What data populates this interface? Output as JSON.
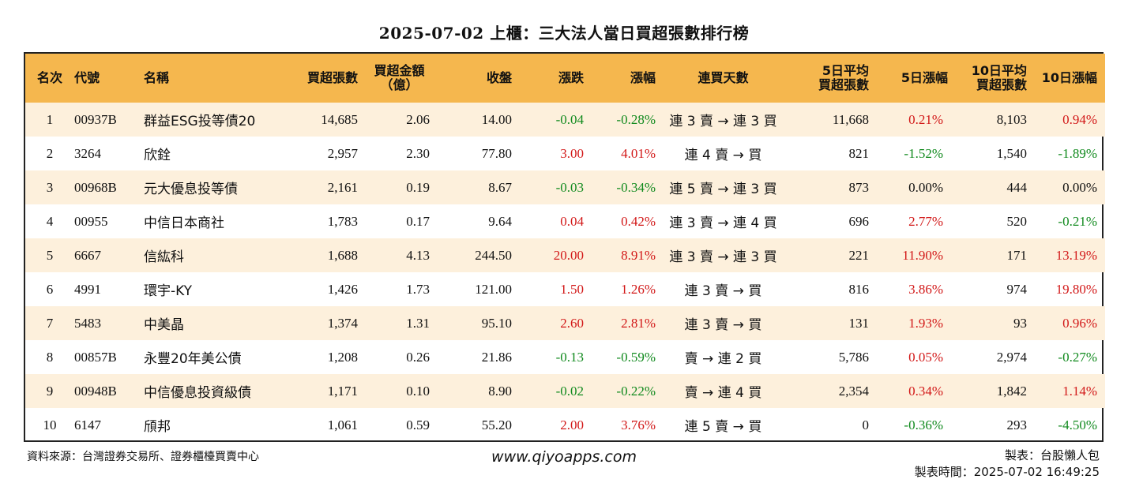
{
  "title": "2025-07-02 上櫃：三大法人當日買超張數排行榜",
  "headers": {
    "rank": "名次",
    "code": "代號",
    "name": "名稱",
    "buy_lots": "買超張數",
    "buy_amount_line1": "買超金額",
    "buy_amount_line2": "（億）",
    "close": "收盤",
    "change": "漲跌",
    "change_pct": "漲幅",
    "streak": "連買天數",
    "avg5_line1": "5日平均",
    "avg5_line2": "買超張數",
    "pct5": "5日漲幅",
    "avg10_line1": "10日平均",
    "avg10_line2": "買超張數",
    "pct10": "10日漲幅"
  },
  "colors": {
    "header_bg": "#f5b74e",
    "stripe_bg": "#fdf0dc",
    "up": "#d21818",
    "down": "#118a1e"
  },
  "rows": [
    {
      "rank": "1",
      "code": "00937B",
      "name": "群益ESG投等債20",
      "buy_lots": "14,685",
      "buy_amount": "2.06",
      "close": "14.00",
      "change": "-0.04",
      "change_pct": "-0.28%",
      "streak": "連 3 賣 → 連 3 買",
      "avg5": "11,668",
      "pct5": "0.21%",
      "avg10": "8,103",
      "pct10": "0.94%",
      "change_color": "green",
      "pct5_color": "red",
      "pct10_color": "red"
    },
    {
      "rank": "2",
      "code": "3264",
      "name": "欣銓",
      "buy_lots": "2,957",
      "buy_amount": "2.30",
      "close": "77.80",
      "change": "3.00",
      "change_pct": "4.01%",
      "streak": "連 4 賣 → 買",
      "avg5": "821",
      "pct5": "-1.52%",
      "avg10": "1,540",
      "pct10": "-1.89%",
      "change_color": "red",
      "pct5_color": "green",
      "pct10_color": "green"
    },
    {
      "rank": "3",
      "code": "00968B",
      "name": "元大優息投等債",
      "buy_lots": "2,161",
      "buy_amount": "0.19",
      "close": "8.67",
      "change": "-0.03",
      "change_pct": "-0.34%",
      "streak": "連 5 賣 → 連 3 買",
      "avg5": "873",
      "pct5": "0.00%",
      "avg10": "444",
      "pct10": "0.00%",
      "change_color": "green",
      "pct5_color": "black",
      "pct10_color": "black"
    },
    {
      "rank": "4",
      "code": "00955",
      "name": "中信日本商社",
      "buy_lots": "1,783",
      "buy_amount": "0.17",
      "close": "9.64",
      "change": "0.04",
      "change_pct": "0.42%",
      "streak": "連 3 賣 → 連 4 買",
      "avg5": "696",
      "pct5": "2.77%",
      "avg10": "520",
      "pct10": "-0.21%",
      "change_color": "red",
      "pct5_color": "red",
      "pct10_color": "green"
    },
    {
      "rank": "5",
      "code": "6667",
      "name": "信紘科",
      "buy_lots": "1,688",
      "buy_amount": "4.13",
      "close": "244.50",
      "change": "20.00",
      "change_pct": "8.91%",
      "streak": "連 3 賣 → 連 3 買",
      "avg5": "221",
      "pct5": "11.90%",
      "avg10": "171",
      "pct10": "13.19%",
      "change_color": "red",
      "pct5_color": "red",
      "pct10_color": "red"
    },
    {
      "rank": "6",
      "code": "4991",
      "name": "環宇-KY",
      "buy_lots": "1,426",
      "buy_amount": "1.73",
      "close": "121.00",
      "change": "1.50",
      "change_pct": "1.26%",
      "streak": "連 3 賣 → 買",
      "avg5": "816",
      "pct5": "3.86%",
      "avg10": "974",
      "pct10": "19.80%",
      "change_color": "red",
      "pct5_color": "red",
      "pct10_color": "red"
    },
    {
      "rank": "7",
      "code": "5483",
      "name": "中美晶",
      "buy_lots": "1,374",
      "buy_amount": "1.31",
      "close": "95.10",
      "change": "2.60",
      "change_pct": "2.81%",
      "streak": "連 3 賣 → 買",
      "avg5": "131",
      "pct5": "1.93%",
      "avg10": "93",
      "pct10": "0.96%",
      "change_color": "red",
      "pct5_color": "red",
      "pct10_color": "red"
    },
    {
      "rank": "8",
      "code": "00857B",
      "name": "永豐20年美公債",
      "buy_lots": "1,208",
      "buy_amount": "0.26",
      "close": "21.86",
      "change": "-0.13",
      "change_pct": "-0.59%",
      "streak": "賣 → 連 2 買",
      "avg5": "5,786",
      "pct5": "0.05%",
      "avg10": "2,974",
      "pct10": "-0.27%",
      "change_color": "green",
      "pct5_color": "red",
      "pct10_color": "green"
    },
    {
      "rank": "9",
      "code": "00948B",
      "name": "中信優息投資級債",
      "buy_lots": "1,171",
      "buy_amount": "0.10",
      "close": "8.90",
      "change": "-0.02",
      "change_pct": "-0.22%",
      "streak": "賣 → 連 4 買",
      "avg5": "2,354",
      "pct5": "0.34%",
      "avg10": "1,842",
      "pct10": "1.14%",
      "change_color": "green",
      "pct5_color": "red",
      "pct10_color": "red"
    },
    {
      "rank": "10",
      "code": "6147",
      "name": "頎邦",
      "buy_lots": "1,061",
      "buy_amount": "0.59",
      "close": "55.20",
      "change": "2.00",
      "change_pct": "3.76%",
      "streak": "連 5 賣 → 買",
      "avg5": "0",
      "pct5": "-0.36%",
      "avg10": "293",
      "pct10": "-4.50%",
      "change_color": "red",
      "pct5_color": "green",
      "pct10_color": "green"
    }
  ],
  "footer": {
    "source": "資料來源：台灣證券交易所、證券櫃檯買賣中心",
    "website": "www.qiyoapps.com",
    "author": "製表：台股懶人包",
    "made_time": "製表時間：2025-07-02 16:49:25"
  }
}
